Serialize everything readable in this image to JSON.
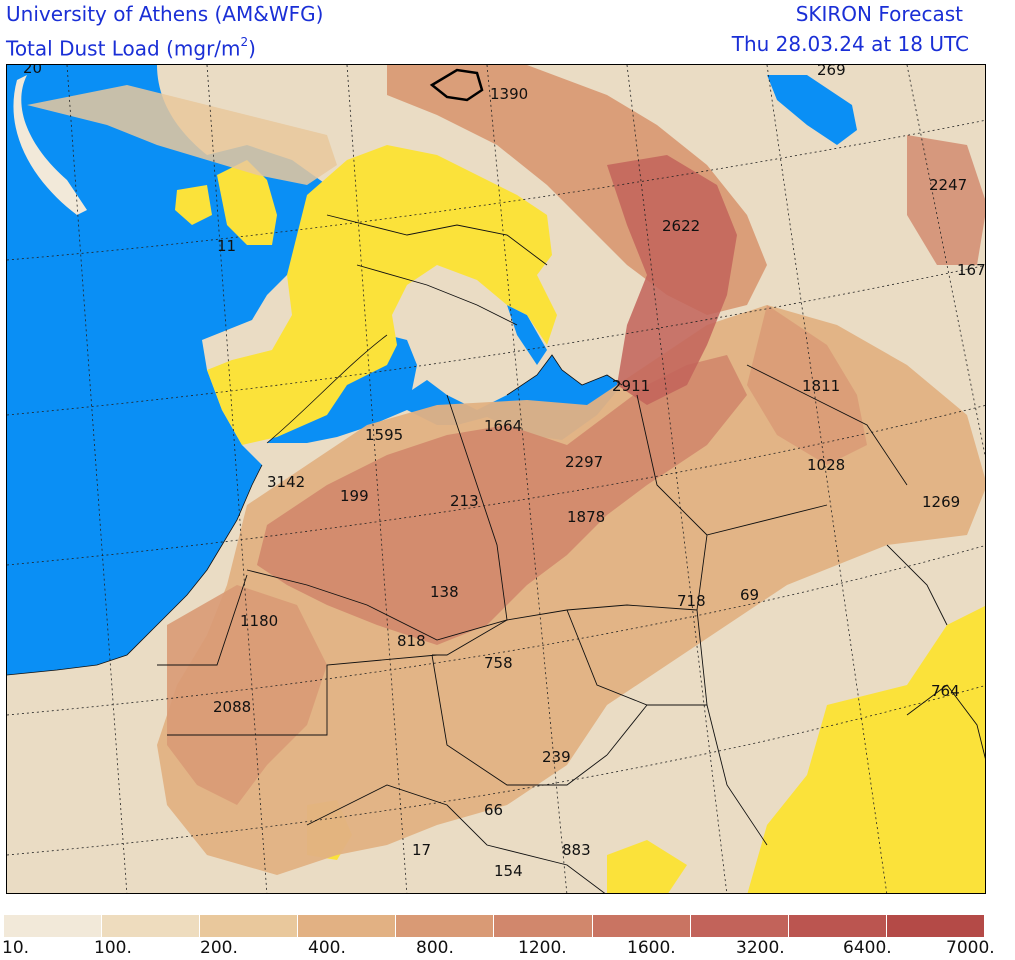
{
  "header": {
    "institution": "University of Athens (AM&WFG)",
    "variable": "Total Dust Load (mgr/m",
    "variable_sup": "2",
    "variable_close": ")",
    "model": "SKIRON Forecast",
    "valid_time": "Thu 28.03.24 at 18 UTC"
  },
  "colors": {
    "sea": "#0a8ff5",
    "clean_land": "#fbe23a",
    "scale": [
      "#f2e9d9",
      "#eedcbe",
      "#e9c89c",
      "#e2b183",
      "#d99a75",
      "#d1876c",
      "#c97462",
      "#c2635a",
      "#bb5550",
      "#b44a47"
    ]
  },
  "legend": {
    "labels": [
      "10.",
      "100.",
      "200.",
      "400.",
      "800.",
      "1200.",
      "1600.",
      "3200.",
      "6400.",
      "7000."
    ]
  },
  "map_values": [
    {
      "id": "v-20",
      "text": "20"
    },
    {
      "id": "v-1390",
      "text": "1390"
    },
    {
      "id": "v-269a",
      "text": "269"
    },
    {
      "id": "v-2247",
      "text": "2247"
    },
    {
      "id": "v-2622",
      "text": "2622"
    },
    {
      "id": "v-11",
      "text": "11"
    },
    {
      "id": "v-167",
      "text": "167"
    },
    {
      "id": "v-2911",
      "text": "2911"
    },
    {
      "id": "v-1811",
      "text": "1811"
    },
    {
      "id": "v-1595",
      "text": "1595"
    },
    {
      "id": "v-1664",
      "text": "1664"
    },
    {
      "id": "v-2297",
      "text": "2297"
    },
    {
      "id": "v-1028",
      "text": "1028"
    },
    {
      "id": "v-3142",
      "text": "3142"
    },
    {
      "id": "v-199",
      "text": "199"
    },
    {
      "id": "v-213",
      "text": "213"
    },
    {
      "id": "v-1878",
      "text": "1878"
    },
    {
      "id": "v-1269",
      "text": "1269"
    },
    {
      "id": "v-138",
      "text": "138"
    },
    {
      "id": "v-718",
      "text": "718"
    },
    {
      "id": "v-69",
      "text": "69"
    },
    {
      "id": "v-1180",
      "text": "1180"
    },
    {
      "id": "v-818",
      "text": "818"
    },
    {
      "id": "v-758",
      "text": "758"
    },
    {
      "id": "v-2088",
      "text": "2088"
    },
    {
      "id": "v-764",
      "text": "764"
    },
    {
      "id": "v-239",
      "text": "239"
    },
    {
      "id": "v-66",
      "text": "66"
    },
    {
      "id": "v-17",
      "text": "17"
    },
    {
      "id": "v-883",
      "text": "883"
    },
    {
      "id": "v-154",
      "text": "154"
    }
  ]
}
